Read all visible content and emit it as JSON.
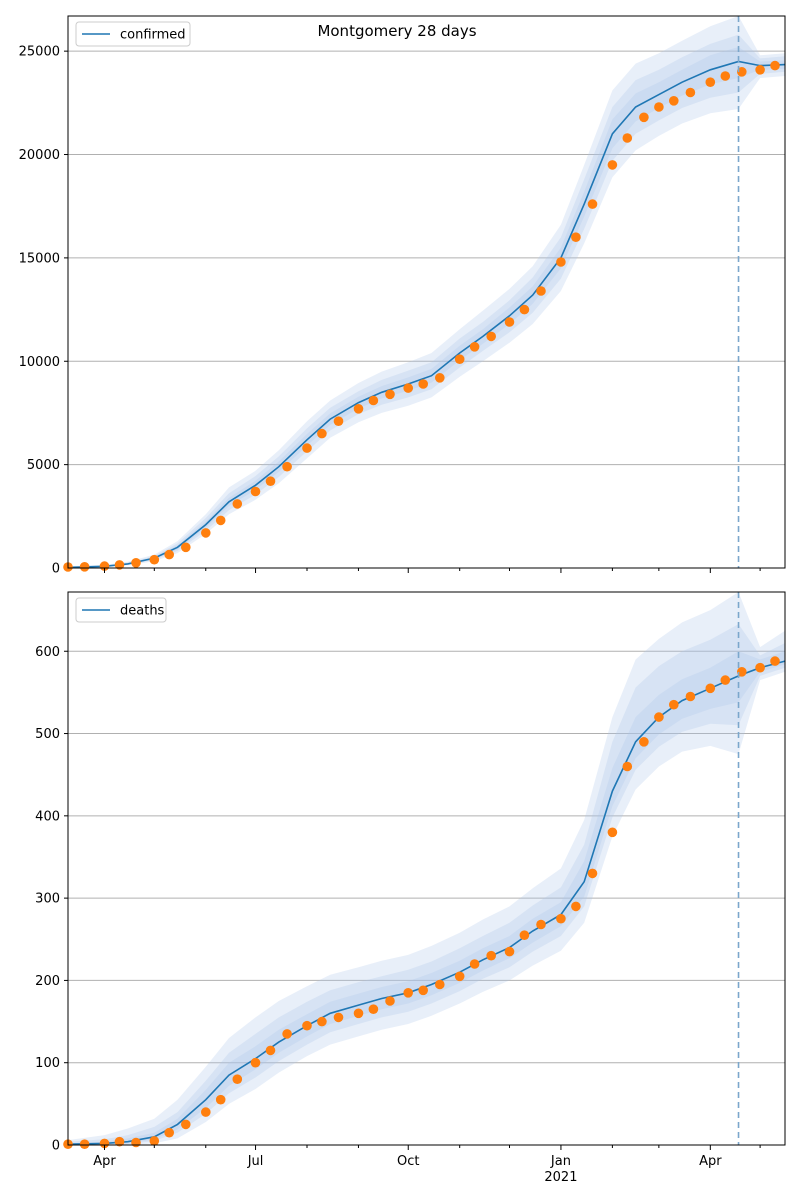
{
  "figure_title": "Montgomery 28 days",
  "colors": {
    "model_line": "#1f77b4",
    "observed": "#ff7f0e",
    "band": "#aec7e8",
    "grid": "#b0b0b0",
    "cutoff_line": "#7ba7cc"
  },
  "chart_data": [
    {
      "type": "line",
      "name": "confirmed-panel",
      "legend": {
        "entries": [
          "confirmed"
        ],
        "position": "top-left"
      },
      "x_type": "date",
      "xlim": [
        "2020-03-10",
        "2021-05-16"
      ],
      "ylim": [
        0,
        26700
      ],
      "yticks": [
        0,
        5000,
        10000,
        15000,
        20000,
        25000
      ],
      "ytick_labels": [
        "0",
        "5000",
        "10000",
        "15000",
        "20000",
        "25000"
      ],
      "grid": "horizontal",
      "forecast_start": "2021-04-18",
      "model": {
        "name": "confirmed",
        "x": [
          "2020-03-10",
          "2020-04-01",
          "2020-04-15",
          "2020-05-01",
          "2020-05-15",
          "2020-06-01",
          "2020-06-15",
          "2020-07-01",
          "2020-07-15",
          "2020-08-01",
          "2020-08-15",
          "2020-09-01",
          "2020-09-15",
          "2020-10-01",
          "2020-10-15",
          "2020-11-01",
          "2020-11-15",
          "2020-12-01",
          "2020-12-15",
          "2021-01-01",
          "2021-01-15",
          "2021-02-01",
          "2021-02-15",
          "2021-03-01",
          "2021-03-15",
          "2021-04-01",
          "2021-04-18",
          "2021-05-01",
          "2021-05-16"
        ],
        "y": [
          30,
          80,
          200,
          480,
          1000,
          2100,
          3200,
          4000,
          4900,
          6200,
          7200,
          8000,
          8500,
          8900,
          9300,
          10400,
          11200,
          12200,
          13200,
          15000,
          17600,
          21000,
          22300,
          22900,
          23500,
          24100,
          24500,
          24300,
          24350
        ],
        "bands": [
          {
            "lower": [
              0,
              40,
              130,
              330,
              720,
              1650,
              2600,
              3300,
              4100,
              5300,
              6300,
              7050,
              7500,
              7850,
              8250,
              9250,
              10000,
              10900,
              11800,
              13400,
              15700,
              18900,
              20200,
              20900,
              21500,
              22000,
              22200,
              23700,
              23800
            ],
            "upper": [
              80,
              150,
              300,
              650,
              1300,
              2600,
              3900,
              4700,
              5700,
              7100,
              8100,
              8950,
              9500,
              9950,
              10400,
              11550,
              12450,
              13500,
              14600,
              16600,
              19500,
              23100,
              24400,
              24900,
              25500,
              26200,
              26700,
              24800,
              24900
            ]
          },
          {
            "lower": [
              10,
              55,
              155,
              390,
              820,
              1800,
              2800,
              3550,
              4400,
              5650,
              6650,
              7450,
              7900,
              8250,
              8650,
              9700,
              10500,
              11400,
              12350,
              14000,
              16400,
              19700,
              21000,
              21650,
              22250,
              22750,
              23000,
              23900,
              24000
            ],
            "upper": [
              60,
              115,
              255,
              580,
              1190,
              2420,
              3620,
              4450,
              5400,
              6750,
              7750,
              8550,
              9100,
              9550,
              9950,
              11100,
              11900,
              12950,
              14050,
              16000,
              18800,
              22300,
              23600,
              24100,
              24700,
              25350,
              25800,
              24650,
              24750
            ]
          },
          {
            "lower": [
              20,
              65,
              175,
              435,
              900,
              1950,
              3000,
              3780,
              4650,
              5920,
              6920,
              7720,
              8200,
              8580,
              8970,
              10050,
              10850,
              11800,
              12780,
              14500,
              17000,
              20300,
              21600,
              22250,
              22850,
              23400,
              23700,
              24100,
              24150
            ],
            "upper": [
              45,
              95,
              225,
              525,
              1100,
              2250,
              3400,
              4220,
              5150,
              6480,
              7480,
              8280,
              8800,
              9220,
              9630,
              10750,
              11550,
              12600,
              13620,
              15500,
              18200,
              21700,
              22950,
              23500,
              24100,
              24800,
              25200,
              24500,
              24550
            ]
          }
        ]
      },
      "observed": {
        "x": [
          "2020-03-10",
          "2020-03-20",
          "2020-04-01",
          "2020-04-10",
          "2020-04-20",
          "2020-05-01",
          "2020-05-10",
          "2020-05-20",
          "2020-06-01",
          "2020-06-10",
          "2020-06-20",
          "2020-07-01",
          "2020-07-10",
          "2020-07-20",
          "2020-08-01",
          "2020-08-10",
          "2020-08-20",
          "2020-09-01",
          "2020-09-10",
          "2020-09-20",
          "2020-10-01",
          "2020-10-10",
          "2020-10-20",
          "2020-11-01",
          "2020-11-10",
          "2020-11-20",
          "2020-12-01",
          "2020-12-10",
          "2020-12-20",
          "2021-01-01",
          "2021-01-10",
          "2021-01-20",
          "2021-02-01",
          "2021-02-10",
          "2021-02-20",
          "2021-03-01",
          "2021-03-10",
          "2021-03-20",
          "2021-04-01",
          "2021-04-10",
          "2021-04-20",
          "2021-05-01",
          "2021-05-10"
        ],
        "y": [
          50,
          60,
          90,
          150,
          250,
          400,
          650,
          1000,
          1700,
          2300,
          3100,
          3700,
          4200,
          4900,
          5800,
          6500,
          7100,
          7700,
          8100,
          8400,
          8700,
          8900,
          9200,
          10100,
          10700,
          11200,
          11900,
          12500,
          13400,
          14800,
          16000,
          17600,
          19500,
          20800,
          21800,
          22300,
          22600,
          23000,
          23500,
          23800,
          24000,
          24100,
          24300
        ]
      }
    },
    {
      "type": "line",
      "name": "deaths-panel",
      "legend": {
        "entries": [
          "deaths"
        ],
        "position": "top-left"
      },
      "x_type": "date",
      "xlim": [
        "2020-03-10",
        "2021-05-16"
      ],
      "ylim": [
        0,
        672
      ],
      "yticks": [
        0,
        100,
        200,
        300,
        400,
        500,
        600
      ],
      "ytick_labels": [
        "0",
        "100",
        "200",
        "300",
        "400",
        "500",
        "600"
      ],
      "grid": "horizontal",
      "forecast_start": "2021-04-18",
      "xticks": [
        "2020-04-01",
        "2020-07-01",
        "2020-10-01",
        "2021-01-01",
        "2021-04-01"
      ],
      "xtick_labels": [
        "Apr",
        "Jul",
        "Oct",
        "Jan",
        "Apr"
      ],
      "x_minor_ticks": [
        "2020-05-01",
        "2020-06-01",
        "2020-08-01",
        "2020-09-01",
        "2020-11-01",
        "2020-12-01",
        "2021-02-01",
        "2021-03-01",
        "2021-05-01"
      ],
      "xtick_sublabel": {
        "under": "Jan",
        "text": "2021"
      },
      "model": {
        "name": "deaths",
        "x": [
          "2020-03-10",
          "2020-04-01",
          "2020-04-15",
          "2020-05-01",
          "2020-05-15",
          "2020-06-01",
          "2020-06-15",
          "2020-07-01",
          "2020-07-15",
          "2020-08-01",
          "2020-08-15",
          "2020-09-01",
          "2020-09-15",
          "2020-10-01",
          "2020-10-15",
          "2020-11-01",
          "2020-11-15",
          "2020-12-01",
          "2020-12-15",
          "2021-01-01",
          "2021-01-15",
          "2021-02-01",
          "2021-02-15",
          "2021-03-01",
          "2021-03-15",
          "2021-04-01",
          "2021-04-18",
          "2021-05-01",
          "2021-05-16"
        ],
        "y": [
          1,
          2,
          4,
          10,
          25,
          55,
          85,
          105,
          125,
          145,
          160,
          170,
          178,
          185,
          195,
          210,
          225,
          240,
          260,
          280,
          320,
          430,
          490,
          520,
          540,
          555,
          570,
          580,
          588
        ],
        "bands": [
          {
            "lower": [
              0,
              0,
              0,
              2,
              8,
              28,
              50,
              68,
              88,
              108,
              122,
              132,
              140,
              147,
              157,
              172,
              186,
              200,
              218,
              236,
              270,
              375,
              432,
              460,
              478,
              485,
              475,
              565,
              575
            ],
            "upper": [
              6,
              12,
              20,
              32,
              55,
              95,
              130,
              155,
              175,
              193,
              207,
              216,
              224,
              231,
              242,
              258,
              274,
              290,
              312,
              336,
              395,
              520,
              590,
              615,
              635,
              650,
              672,
              605,
              625
            ]
          },
          {
            "lower": [
              0,
              1,
              1,
              5,
              15,
              38,
              63,
              82,
              102,
              122,
              137,
              147,
              155,
              162,
              172,
              187,
              202,
              216,
              235,
              254,
              290,
              398,
              456,
              484,
              502,
              512,
              510,
              570,
              580
            ],
            "upper": [
              4,
              7,
              12,
              22,
              40,
              78,
              112,
              135,
              155,
              174,
              188,
              198,
              205,
              213,
              223,
              239,
              254,
              270,
              291,
              313,
              365,
              490,
              556,
              582,
              600,
              614,
              633,
              595,
              610
            ]
          },
          {
            "lower": [
              0,
              1,
              2,
              7,
              19,
              45,
              72,
              92,
              112,
              132,
              147,
              157,
              165,
              172,
              182,
              197,
              212,
              227,
              246,
              266,
              302,
              412,
              470,
              499,
              518,
              530,
              538,
              575,
              584
            ],
            "upper": [
              2,
              4,
              8,
              15,
              32,
              67,
              100,
              120,
              140,
              159,
              174,
              184,
              192,
              199,
              209,
              224,
              239,
              254,
              275,
              295,
              345,
              458,
              520,
              547,
              566,
              580,
              600,
              590,
              600
            ]
          }
        ]
      },
      "observed": {
        "x": [
          "2020-03-10",
          "2020-03-20",
          "2020-04-01",
          "2020-04-10",
          "2020-04-20",
          "2020-05-01",
          "2020-05-10",
          "2020-05-20",
          "2020-06-01",
          "2020-06-10",
          "2020-06-20",
          "2020-07-01",
          "2020-07-10",
          "2020-07-20",
          "2020-08-01",
          "2020-08-10",
          "2020-08-20",
          "2020-09-01",
          "2020-09-10",
          "2020-09-20",
          "2020-10-01",
          "2020-10-10",
          "2020-10-20",
          "2020-11-01",
          "2020-11-10",
          "2020-11-20",
          "2020-12-01",
          "2020-12-10",
          "2020-12-20",
          "2021-01-01",
          "2021-01-10",
          "2021-01-20",
          "2021-02-01",
          "2021-02-10",
          "2021-02-20",
          "2021-03-01",
          "2021-03-10",
          "2021-03-20",
          "2021-04-01",
          "2021-04-10",
          "2021-04-20",
          "2021-05-01",
          "2021-05-10"
        ],
        "y": [
          1,
          1,
          2,
          4,
          3,
          5,
          15,
          25,
          40,
          55,
          80,
          100,
          115,
          135,
          145,
          150,
          155,
          160,
          165,
          175,
          185,
          188,
          195,
          205,
          220,
          230,
          235,
          255,
          268,
          275,
          290,
          330,
          380,
          460,
          490,
          520,
          535,
          545,
          555,
          565,
          575,
          580,
          588
        ]
      }
    }
  ]
}
